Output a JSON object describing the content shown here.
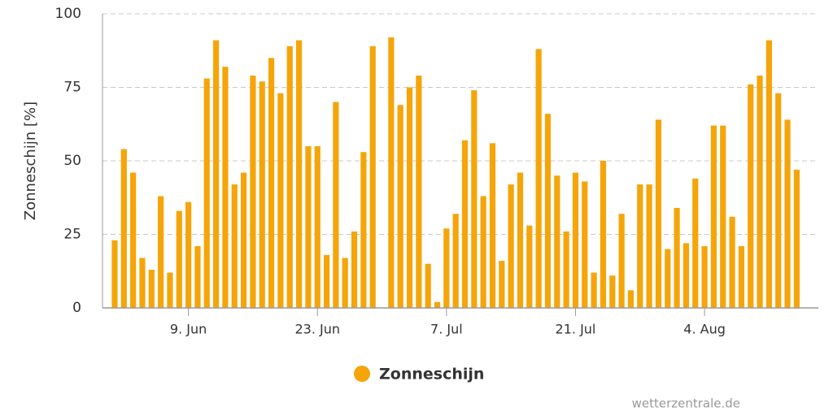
{
  "chart_data": {
    "type": "bar",
    "y_label": "Zonneschijn [%]",
    "categories": [
      null,
      null,
      null,
      null,
      null,
      null,
      null,
      null,
      "9. Jun",
      null,
      null,
      null,
      null,
      null,
      null,
      null,
      null,
      null,
      null,
      null,
      null,
      null,
      "23. Jun",
      null,
      null,
      null,
      null,
      null,
      null,
      null,
      null,
      null,
      null,
      null,
      null,
      null,
      "7. Jul",
      null,
      null,
      null,
      null,
      null,
      null,
      null,
      null,
      null,
      null,
      null,
      null,
      null,
      "21. Jul",
      null,
      null,
      null,
      null,
      null,
      null,
      null,
      null,
      null,
      null,
      null,
      null,
      null,
      "4. Aug",
      null,
      null,
      null,
      null,
      null,
      null,
      null,
      null,
      null,
      null
    ],
    "series": [
      {
        "name": "Zonneschijn",
        "color": "#f5a50a",
        "values": [
          23,
          54,
          46,
          17,
          13,
          38,
          12,
          33,
          36,
          21,
          78,
          91,
          82,
          42,
          46,
          79,
          77,
          85,
          73,
          89,
          91,
          55,
          55,
          18,
          70,
          17,
          26,
          53,
          89,
          null,
          92,
          69,
          75,
          79,
          15,
          2,
          27,
          32,
          57,
          74,
          38,
          56,
          16,
          42,
          46,
          28,
          88,
          66,
          45,
          26,
          46,
          43,
          12,
          50,
          11,
          32,
          6,
          42,
          42,
          64,
          20,
          34,
          22,
          44,
          21,
          62,
          62,
          31,
          21,
          76,
          79,
          91,
          73,
          64,
          47
        ]
      }
    ],
    "ylim": [
      0,
      100
    ],
    "yticks": [
      0,
      25,
      50,
      75,
      100
    ],
    "grid": true,
    "credit": "wetterzentrale.de"
  }
}
